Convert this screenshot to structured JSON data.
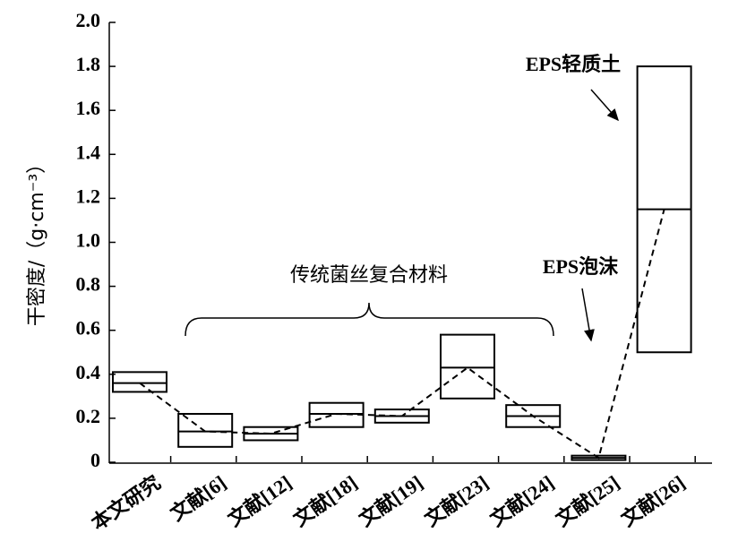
{
  "chart_data": {
    "type": "box",
    "y_label": "干密度/（g·cm⁻³）",
    "categories": [
      "本文研究",
      "文献[6]",
      "文献[12]",
      "文献[18]",
      "文献[19]",
      "文献[23]",
      "文献[24]",
      "文献[25]",
      "文献[26]"
    ],
    "low": [
      0.32,
      0.07,
      0.1,
      0.16,
      0.18,
      0.29,
      0.16,
      0.01,
      0.5
    ],
    "high": [
      0.41,
      0.22,
      0.16,
      0.27,
      0.24,
      0.58,
      0.26,
      0.03,
      1.8
    ],
    "median": [
      0.36,
      0.14,
      0.13,
      0.22,
      0.21,
      0.43,
      0.21,
      0.02,
      1.15
    ],
    "ylim": [
      0,
      2.0
    ],
    "yticks": [
      0,
      0.2,
      0.4,
      0.6,
      0.8,
      {
        "value": 1.0,
        "label": "1.0"
      },
      1.2,
      1.4,
      1.6,
      1.8,
      {
        "value": 2.0,
        "label": "2.0"
      }
    ],
    "annotations": {
      "traditional": "传统菌丝复合材料",
      "eps_foam": "EPS泡沫",
      "eps_soil": "EPS轻质土"
    },
    "color": "#000000"
  }
}
